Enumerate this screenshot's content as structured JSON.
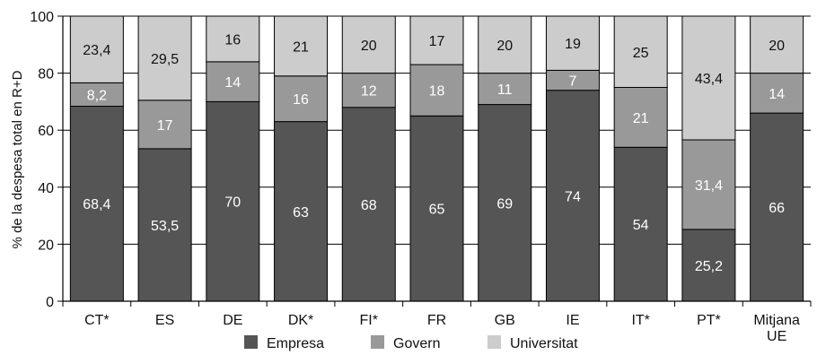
{
  "chart_data": {
    "type": "bar",
    "stacked": true,
    "categories": [
      "CT*",
      "ES",
      "DE",
      "DK*",
      "FI*",
      "FR",
      "GB",
      "IE",
      "IT*",
      "PT*",
      "Mitjana UE"
    ],
    "series": [
      {
        "name": "Empresa",
        "color": "#555555",
        "label_color": "#ffffff",
        "values": [
          68.4,
          53.5,
          70,
          63,
          68,
          65,
          69,
          74,
          54,
          25.2,
          66
        ],
        "labels": [
          "68,4",
          "53,5",
          "70",
          "63",
          "68",
          "65",
          "69",
          "74",
          "54",
          "25,2",
          "66"
        ]
      },
      {
        "name": "Govern",
        "color": "#999999",
        "label_color": "#ffffff",
        "values": [
          8.2,
          17,
          14,
          16,
          12,
          18,
          11,
          7,
          21,
          31.4,
          14
        ],
        "labels": [
          "8,2",
          "17",
          "14",
          "16",
          "12",
          "18",
          "11",
          "7",
          "21",
          "31,4",
          "14"
        ]
      },
      {
        "name": "Universitat",
        "color": "#cccccc",
        "label_color": "#111111",
        "values": [
          23.4,
          29.5,
          16,
          21,
          20,
          17,
          20,
          19,
          25,
          43.4,
          20
        ],
        "labels": [
          "23,4",
          "29,5",
          "16",
          "21",
          "20",
          "17",
          "20",
          "19",
          "25",
          "43,4",
          "20"
        ]
      }
    ],
    "ylabel": "% de la despesa total en R+D",
    "xlabel": "",
    "ylim": [
      0,
      100
    ],
    "yticks": [
      0,
      20,
      40,
      60,
      80,
      100
    ],
    "grid": true,
    "legend_position": "bottom"
  }
}
